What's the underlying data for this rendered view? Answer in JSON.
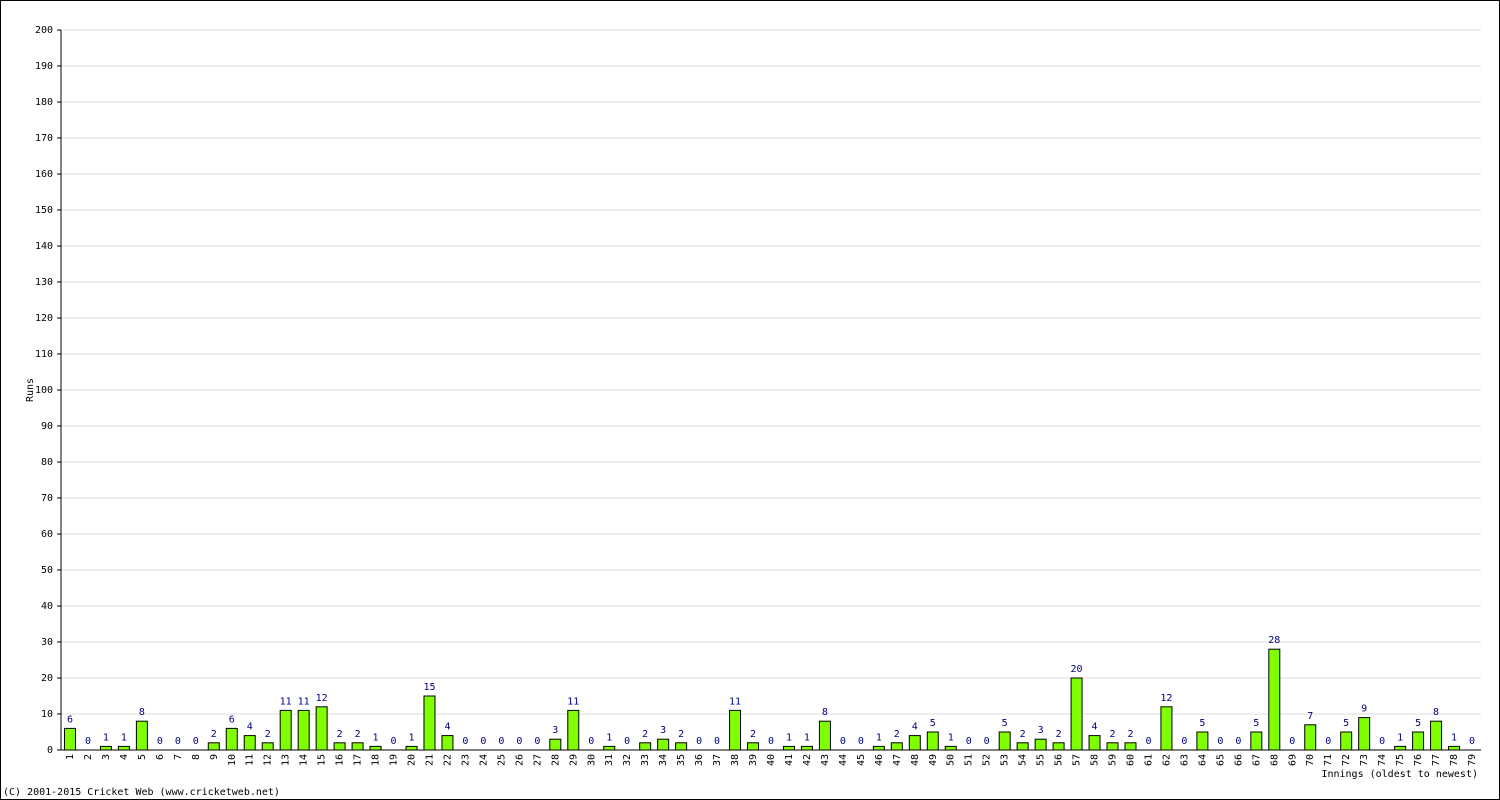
{
  "chart_data": {
    "type": "bar",
    "y_label": "Runs",
    "x_label": "Innings (oldest to newest)",
    "footer": "(C) 2001-2015 Cricket Web (www.cricketweb.net)",
    "categories": [
      "1",
      "2",
      "3",
      "4",
      "5",
      "6",
      "7",
      "8",
      "9",
      "10",
      "11",
      "12",
      "13",
      "14",
      "15",
      "16",
      "17",
      "18",
      "19",
      "20",
      "21",
      "22",
      "23",
      "24",
      "25",
      "26",
      "27",
      "28",
      "29",
      "30",
      "31",
      "32",
      "33",
      "34",
      "35",
      "36",
      "37",
      "38",
      "39",
      "40",
      "41",
      "42",
      "43",
      "44",
      "45",
      "46",
      "47",
      "48",
      "49",
      "50",
      "51",
      "52",
      "53",
      "54",
      "55",
      "56",
      "57",
      "58",
      "59",
      "60",
      "61",
      "62",
      "63",
      "64",
      "65",
      "66",
      "67",
      "68",
      "69",
      "70",
      "71",
      "72",
      "73",
      "74",
      "75",
      "76",
      "77",
      "78",
      "79"
    ],
    "values": [
      6,
      0,
      1,
      1,
      8,
      0,
      0,
      0,
      2,
      6,
      4,
      2,
      11,
      11,
      12,
      2,
      2,
      1,
      0,
      1,
      15,
      4,
      0,
      0,
      0,
      0,
      0,
      3,
      11,
      0,
      1,
      0,
      2,
      3,
      2,
      0,
      0,
      11,
      2,
      0,
      1,
      1,
      8,
      0,
      0,
      1,
      2,
      4,
      5,
      1,
      0,
      0,
      5,
      2,
      3,
      2,
      20,
      4,
      2,
      2,
      0,
      12,
      0,
      5,
      0,
      0,
      5,
      28,
      0,
      7,
      0,
      5,
      9,
      0,
      1,
      5,
      8,
      1,
      0
    ],
    "color": "#80ff00",
    "label_color": "#000080",
    "ylim": [
      0,
      200
    ],
    "yticks": [
      0,
      10,
      20,
      30,
      40,
      50,
      60,
      70,
      80,
      90,
      100,
      110,
      120,
      130,
      140,
      150,
      160,
      170,
      180,
      190,
      200
    ],
    "grid": true
  }
}
